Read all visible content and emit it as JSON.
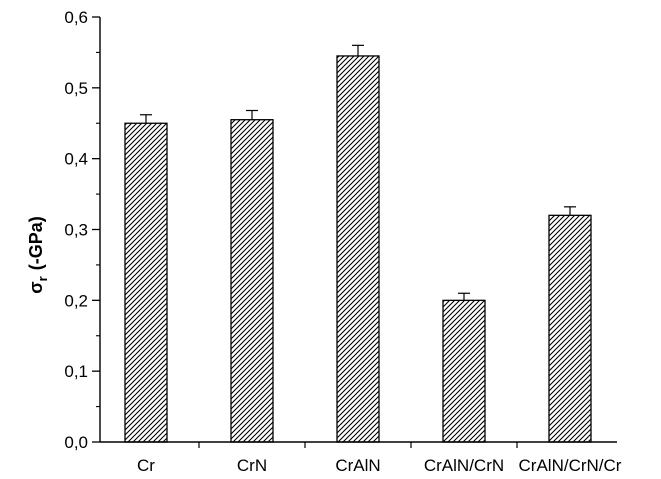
{
  "chart_data": {
    "type": "bar",
    "title": "",
    "xlabel": "",
    "ylabel": {
      "symbol": "σ",
      "subscript": "r",
      "unit": "(-GPa)"
    },
    "categories": [
      "Cr",
      "CrN",
      "CrAlN",
      "CrAlN/CrN",
      "CrAlN/CrN/Cr"
    ],
    "values": [
      0.45,
      0.455,
      0.545,
      0.2,
      0.32
    ],
    "errors": [
      0.012,
      0.013,
      0.015,
      0.01,
      0.012
    ],
    "ylim": [
      0,
      0.6
    ],
    "yticks": [
      0.0,
      0.1,
      0.2,
      0.3,
      0.4,
      0.5,
      0.6
    ],
    "ytick_labels": [
      "0,0",
      "0,1",
      "0,2",
      "0,3",
      "0,4",
      "0,5",
      "0,6"
    ],
    "grid": false,
    "legend": "none",
    "bar_fill": "diagonal hatch",
    "colors": {
      "bar_stroke": "#000000",
      "hatch": "#000000",
      "background": "#ffffff"
    }
  }
}
